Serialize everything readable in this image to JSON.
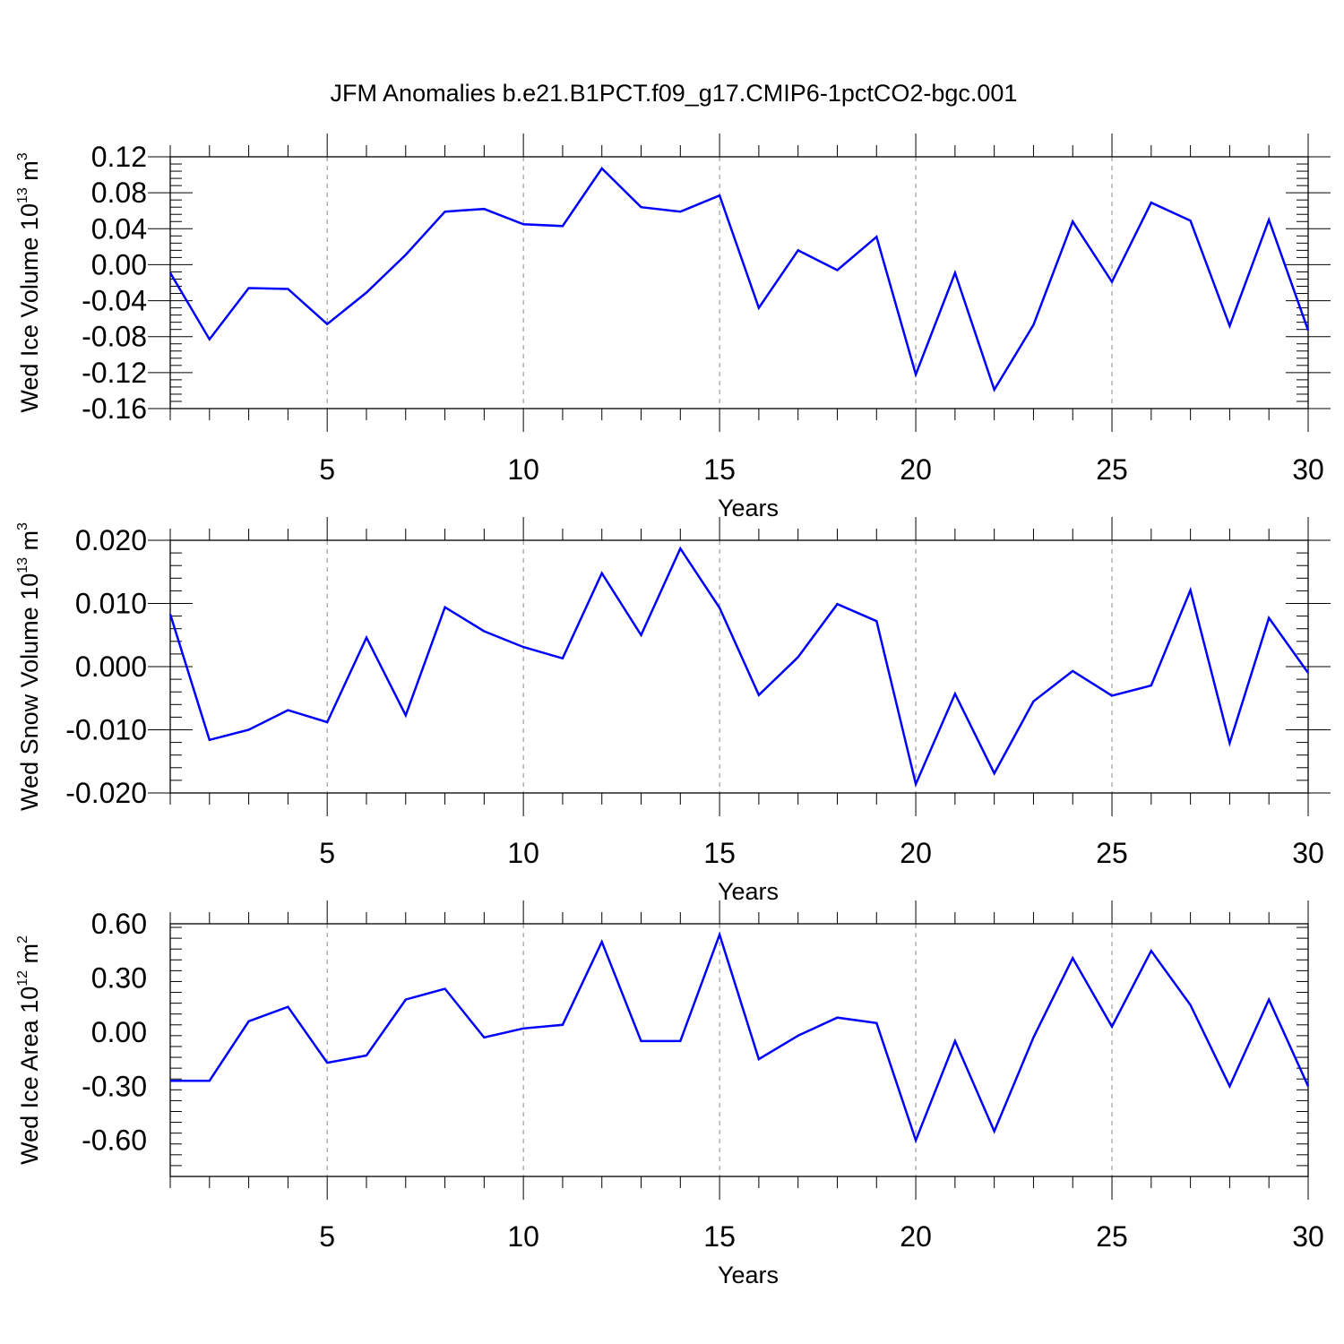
{
  "figure": {
    "title": "JFM Anomalies b.e21.B1PCT.f09_g17.CMIP6-1pctCO2-bgc.001"
  },
  "chart_data": [
    {
      "type": "line",
      "ylabel": "Wed Ice Volume 10",
      "ylabel_exponent": "13",
      "ylabel_unit": " m",
      "ylabel_unit_exponent": "3",
      "xlabel": "Years",
      "xlim": [
        1,
        30
      ],
      "ylim": [
        -0.16,
        0.12
      ],
      "xticks": [
        "5",
        "10",
        "15",
        "20",
        "25",
        "30"
      ],
      "xtick_values": [
        5,
        10,
        15,
        20,
        25,
        30
      ],
      "yticks": [
        "0.12",
        "0.08",
        "0.04",
        "0.00",
        "-0.04",
        "-0.08",
        "-0.12",
        "-0.16"
      ],
      "ytick_values": [
        0.12,
        0.08,
        0.04,
        0.0,
        -0.04,
        -0.08,
        -0.12,
        -0.16
      ],
      "grid": "dashed vertical at major x ticks",
      "line_color": "#0000ff",
      "x": [
        1,
        2,
        3,
        4,
        5,
        6,
        7,
        8,
        9,
        10,
        11,
        12,
        13,
        14,
        15,
        16,
        17,
        18,
        19,
        20,
        21,
        22,
        23,
        24,
        25,
        26,
        27,
        28,
        29,
        30
      ],
      "series": [
        {
          "values": [
            -0.009,
            -0.083,
            -0.026,
            -0.027,
            -0.066,
            -0.031,
            0.011,
            0.059,
            0.062,
            0.045,
            0.043,
            0.107,
            0.064,
            0.059,
            0.077,
            -0.048,
            0.016,
            -0.006,
            0.031,
            -0.122,
            -0.009,
            -0.139,
            -0.067,
            0.048,
            -0.019,
            0.069,
            0.049,
            -0.068,
            0.05,
            -0.073
          ]
        }
      ]
    },
    {
      "type": "line",
      "ylabel": "Wed Snow Volume 10",
      "ylabel_exponent": "13",
      "ylabel_unit": " m",
      "ylabel_unit_exponent": "3",
      "xlabel": "Years",
      "xlim": [
        1,
        30
      ],
      "ylim": [
        -0.02,
        0.02
      ],
      "xticks": [
        "5",
        "10",
        "15",
        "20",
        "25",
        "30"
      ],
      "xtick_values": [
        5,
        10,
        15,
        20,
        25,
        30
      ],
      "yticks": [
        "0.020",
        "0.010",
        "0.000",
        "-0.010",
        "-0.020"
      ],
      "ytick_values": [
        0.02,
        0.01,
        0.0,
        -0.01,
        -0.02
      ],
      "grid": "dashed vertical at major x ticks",
      "line_color": "#0000ff",
      "x": [
        1,
        2,
        3,
        4,
        5,
        6,
        7,
        8,
        9,
        10,
        11,
        12,
        13,
        14,
        15,
        16,
        17,
        18,
        19,
        20,
        21,
        22,
        23,
        24,
        25,
        26,
        27,
        28,
        29,
        30
      ],
      "series": [
        {
          "values": [
            0.0083,
            -0.0116,
            -0.01,
            -0.0069,
            -0.0088,
            0.0046,
            -0.0077,
            0.0094,
            0.0056,
            0.0031,
            0.0013,
            0.0148,
            0.005,
            0.0187,
            0.0093,
            -0.0045,
            0.0015,
            0.0099,
            0.0072,
            -0.0186,
            -0.0043,
            -0.0169,
            -0.0055,
            -0.0007,
            -0.0046,
            -0.003,
            0.0121,
            -0.0121,
            0.0077,
            -0.001
          ]
        }
      ]
    },
    {
      "type": "line",
      "ylabel": "Wed Ice Area 10",
      "ylabel_exponent": "12",
      "ylabel_unit": " m",
      "ylabel_unit_exponent": "2",
      "xlabel": "Years",
      "xlim": [
        1,
        30
      ],
      "ylim": [
        -0.8,
        0.6
      ],
      "xticks": [
        "5",
        "10",
        "15",
        "20",
        "25",
        "30"
      ],
      "xtick_values": [
        5,
        10,
        15,
        20,
        25,
        30
      ],
      "yticks": [
        "0.60",
        "0.30",
        "0.00",
        "-0.30",
        "-0.60"
      ],
      "ytick_values": [
        0.6,
        0.3,
        0.0,
        -0.3,
        -0.6
      ],
      "grid": "dashed vertical at major x ticks",
      "line_color": "#0000ff",
      "x": [
        1,
        2,
        3,
        4,
        5,
        6,
        7,
        8,
        9,
        10,
        11,
        12,
        13,
        14,
        15,
        16,
        17,
        18,
        19,
        20,
        21,
        22,
        23,
        24,
        25,
        26,
        27,
        28,
        29,
        30
      ],
      "series": [
        {
          "values": [
            -0.27,
            -0.27,
            0.06,
            0.14,
            -0.17,
            -0.13,
            0.18,
            0.24,
            -0.03,
            0.02,
            0.04,
            0.5,
            -0.05,
            -0.05,
            0.54,
            -0.15,
            -0.02,
            0.08,
            0.05,
            -0.6,
            -0.05,
            -0.55,
            -0.03,
            0.41,
            0.03,
            0.45,
            0.15,
            -0.3,
            0.18,
            -0.3
          ]
        }
      ]
    }
  ]
}
